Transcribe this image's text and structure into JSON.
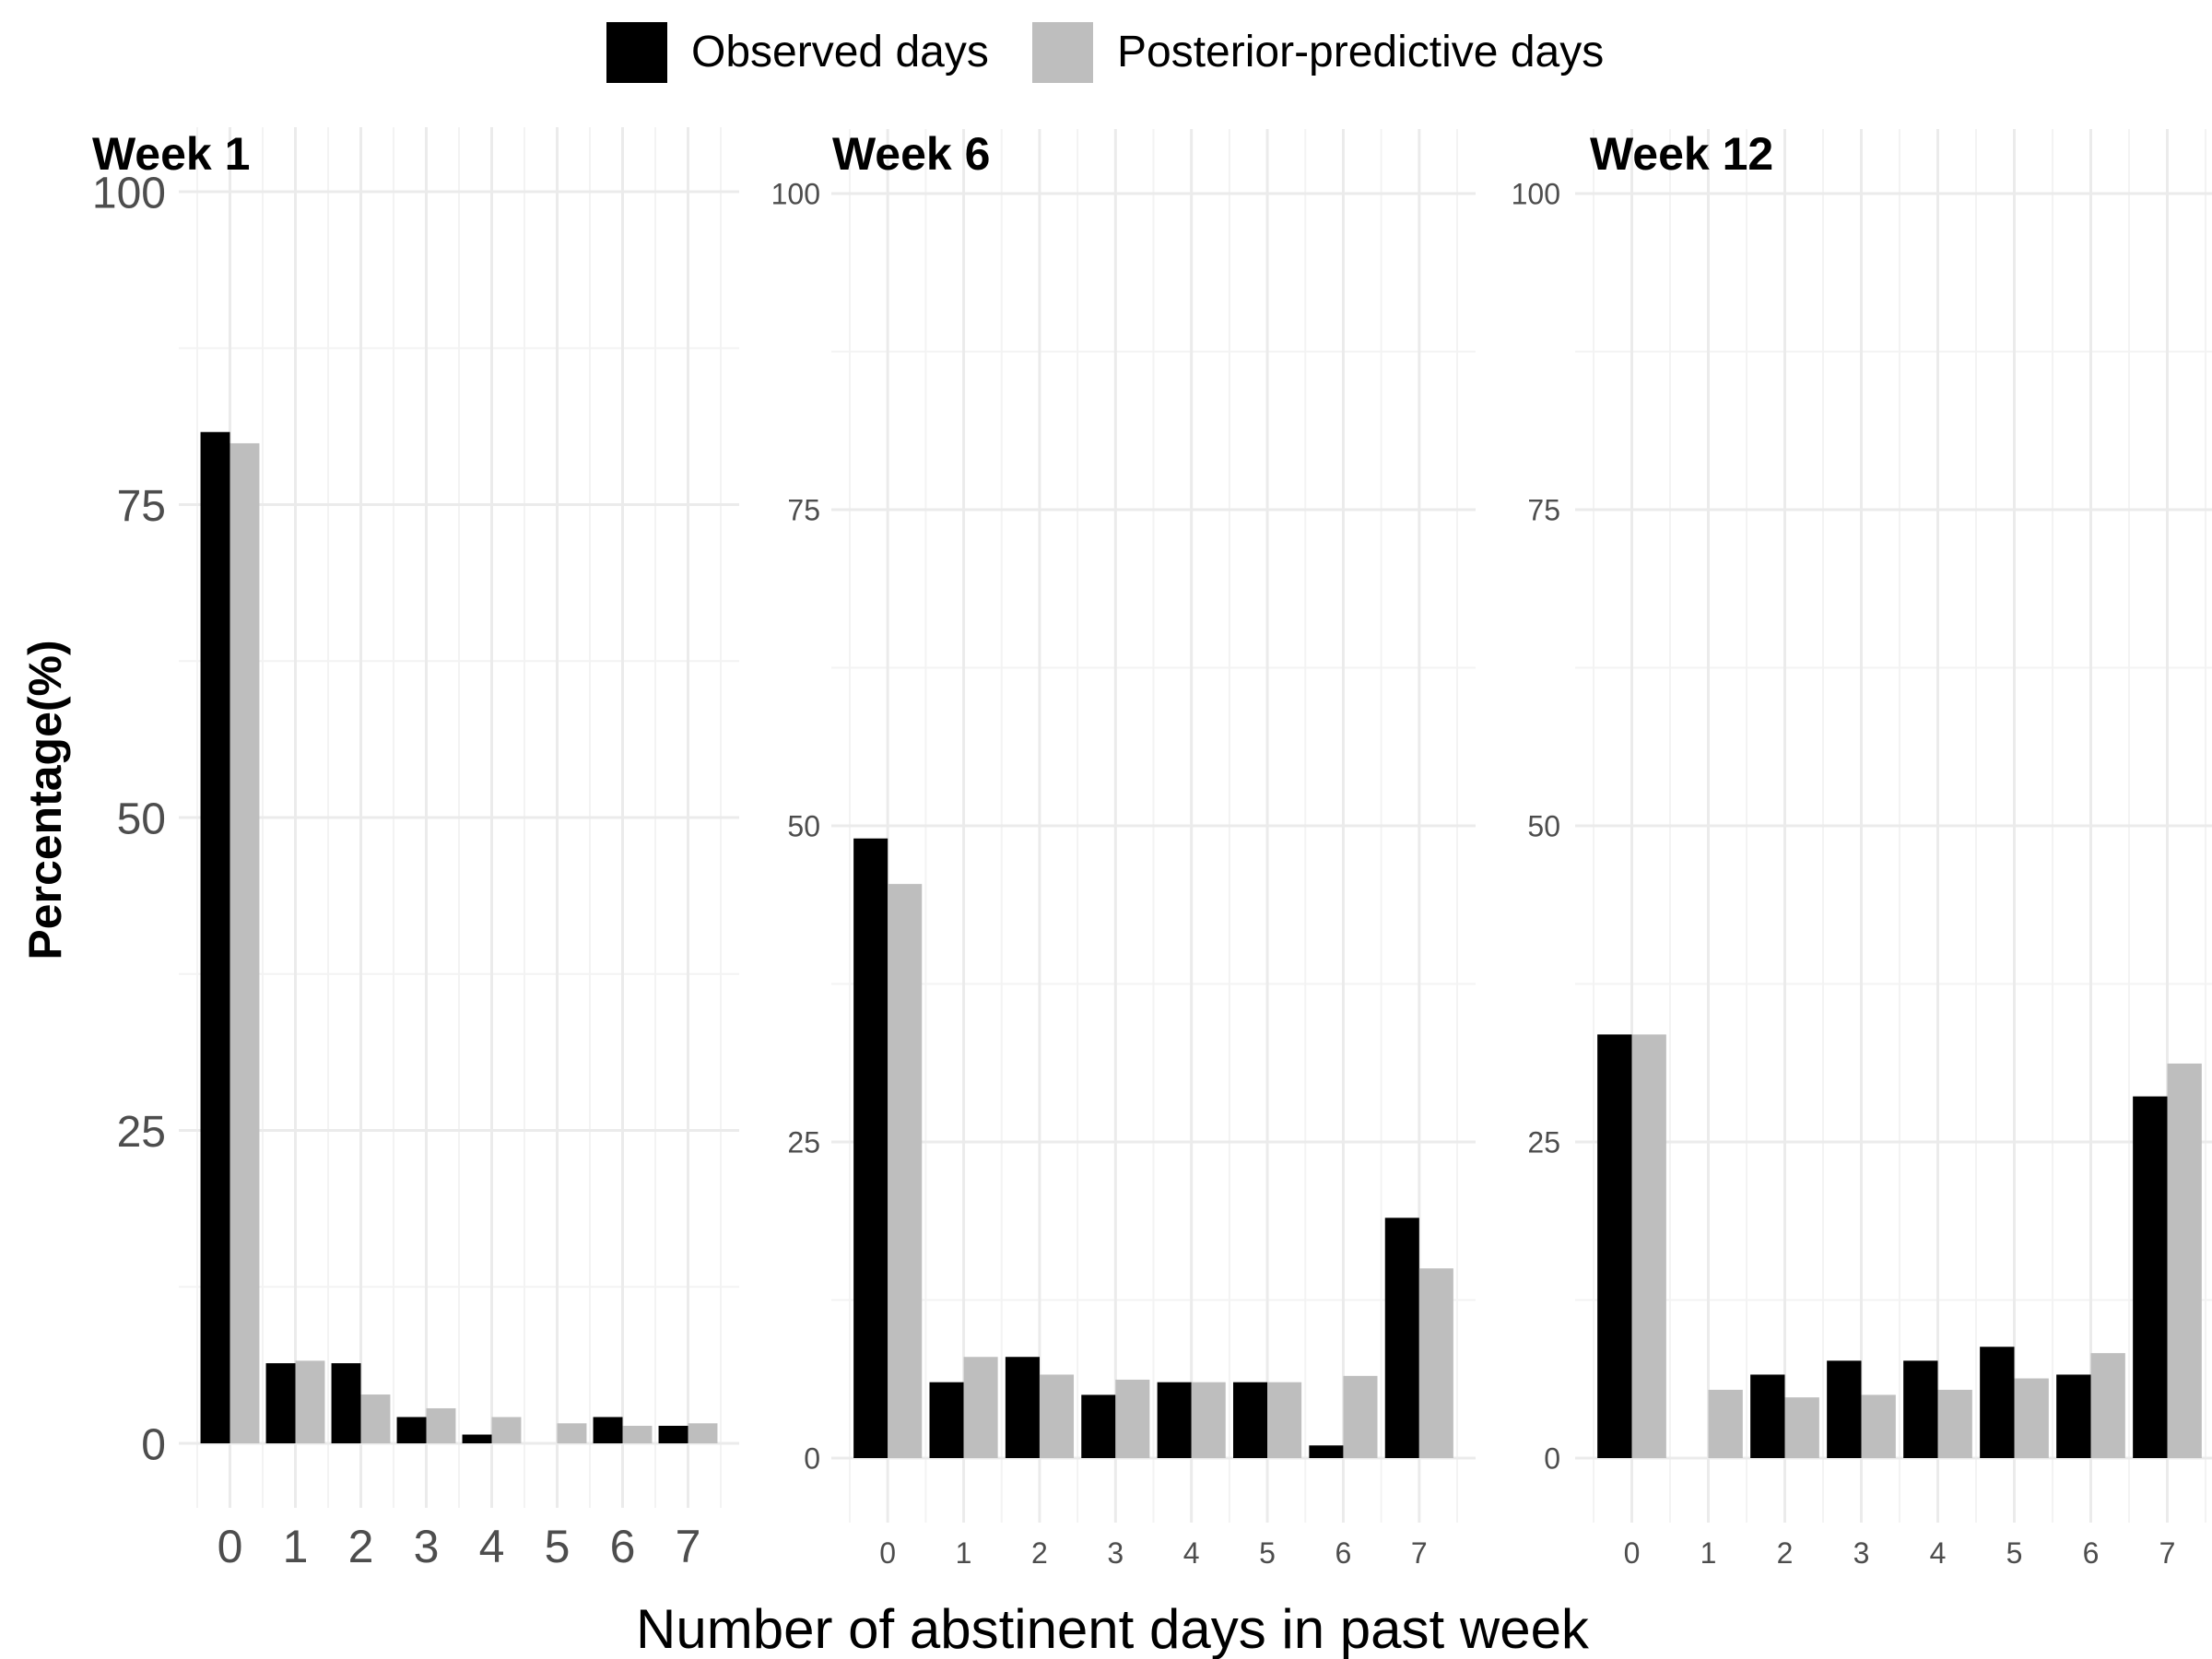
{
  "chart_data": {
    "type": "bar",
    "legend": {
      "position": "top",
      "entries": [
        {
          "label": "Observed days",
          "color": "#000000"
        },
        {
          "label": "Posterior-predictive days",
          "color": "#bebebe"
        }
      ]
    },
    "xlabel": "Number of abstinent days in past week",
    "ylabel": "Percentage(%)",
    "grid": true,
    "panels": [
      {
        "title": "Week 1",
        "categories": [
          "0",
          "1",
          "2",
          "3",
          "4",
          "5",
          "6",
          "7"
        ],
        "ylim": [
          0,
          100
        ],
        "yticks": [
          "0",
          "25",
          "50",
          "75",
          "100"
        ],
        "series": [
          {
            "name": "Observed days",
            "values": [
              80.8,
              6.4,
              6.4,
              2.1,
              0.7,
              0.0,
              2.1,
              1.4
            ]
          },
          {
            "name": "Posterior-predictive days",
            "values": [
              79.9,
              6.6,
              3.9,
              2.8,
              2.1,
              1.6,
              1.4,
              1.6
            ]
          }
        ]
      },
      {
        "title": "Week 6",
        "categories": [
          "0",
          "1",
          "2",
          "3",
          "4",
          "5",
          "6",
          "7"
        ],
        "ylim": [
          0,
          100
        ],
        "yticks": [
          "0",
          "25",
          "50",
          "75",
          "100"
        ],
        "series": [
          {
            "name": "Observed days",
            "values": [
              49.0,
              6.0,
              8.0,
              5.0,
              6.0,
              6.0,
              1.0,
              19.0
            ]
          },
          {
            "name": "Posterior-predictive days",
            "values": [
              45.4,
              8.0,
              6.6,
              6.2,
              6.0,
              6.0,
              6.5,
              15.0
            ]
          }
        ]
      },
      {
        "title": "Week 12",
        "categories": [
          "0",
          "1",
          "2",
          "3",
          "4",
          "5",
          "6",
          "7"
        ],
        "ylim": [
          0,
          100
        ],
        "yticks": [
          "0",
          "25",
          "50",
          "75",
          "100"
        ],
        "series": [
          {
            "name": "Observed days",
            "values": [
              33.5,
              0.0,
              6.6,
              7.7,
              7.7,
              8.8,
              6.6,
              28.6
            ]
          },
          {
            "name": "Posterior-predictive days",
            "values": [
              33.5,
              5.4,
              4.8,
              5.0,
              5.4,
              6.3,
              8.3,
              31.2
            ]
          }
        ]
      }
    ]
  }
}
